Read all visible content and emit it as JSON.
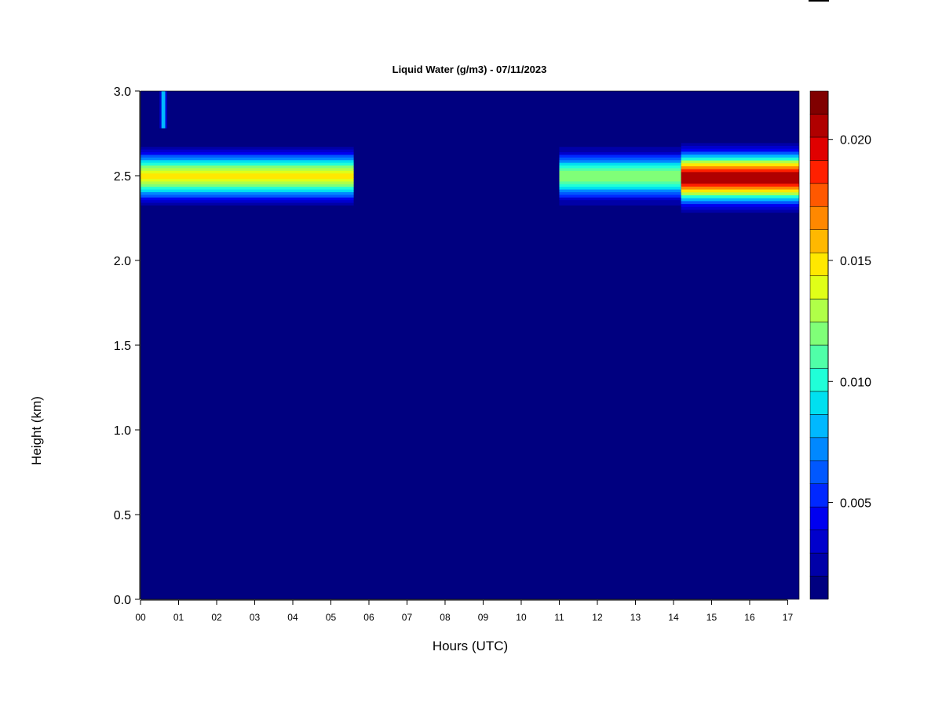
{
  "chart_data": {
    "type": "heatmap",
    "title": "Liquid Water (g/m3) - 07/11/2023",
    "xlabel": "Hours (UTC)",
    "ylabel": "Height (km)",
    "xlim": [
      0,
      17.3
    ],
    "ylim": [
      0,
      3.0
    ],
    "x_tick_values": [
      0,
      1,
      2,
      3,
      4,
      5,
      6,
      7,
      8,
      9,
      10,
      11,
      12,
      13,
      14,
      15,
      16,
      17
    ],
    "x_tick_labels": [
      "00",
      "01",
      "02",
      "03",
      "04",
      "05",
      "06",
      "07",
      "08",
      "09",
      "10",
      "11",
      "12",
      "13",
      "14",
      "15",
      "16",
      "17"
    ],
    "y_tick_values": [
      0,
      0.5,
      1.0,
      1.5,
      2.0,
      2.5,
      3.0
    ],
    "y_tick_labels": [
      "0.0",
      "0.5",
      "1.0",
      "1.5",
      "2.0",
      "2.5",
      "3.0"
    ],
    "colorbar": {
      "min": 0.001,
      "max": 0.022,
      "tick_values": [
        0.005,
        0.01,
        0.015,
        0.02
      ],
      "tick_labels": [
        "0.005",
        "0.010",
        "0.015",
        "0.020"
      ],
      "colors": [
        "#000080",
        "#0000a8",
        "#0000cc",
        "#0000f0",
        "#0028ff",
        "#0058ff",
        "#0088ff",
        "#00b8ff",
        "#00e0f0",
        "#20ffd8",
        "#50ffa8",
        "#80ff78",
        "#b0ff48",
        "#e0ff18",
        "#ffe800",
        "#ffb800",
        "#ff8800",
        "#ff5800",
        "#ff2000",
        "#e00000",
        "#b00000",
        "#800000"
      ]
    },
    "background_value": 0.0005,
    "cloud_layers": [
      {
        "x_start": 0.0,
        "x_end": 5.6,
        "center_km": 2.5,
        "half_thickness_km": 0.22,
        "peak_value": 0.0145
      },
      {
        "x_start": 11.0,
        "x_end": 14.2,
        "center_km": 2.5,
        "half_thickness_km": 0.22,
        "peak_value": 0.0125
      },
      {
        "x_start": 14.2,
        "x_end": 17.3,
        "center_km": 2.49,
        "half_thickness_km": 0.24,
        "peak_value": 0.021
      }
    ],
    "cloud_streaks": [
      {
        "x_start": 0.45,
        "x_end": 0.75,
        "y_bottom_km": 2.78,
        "y_top_km": 3.0,
        "peak_value": 0.0095
      }
    ]
  }
}
